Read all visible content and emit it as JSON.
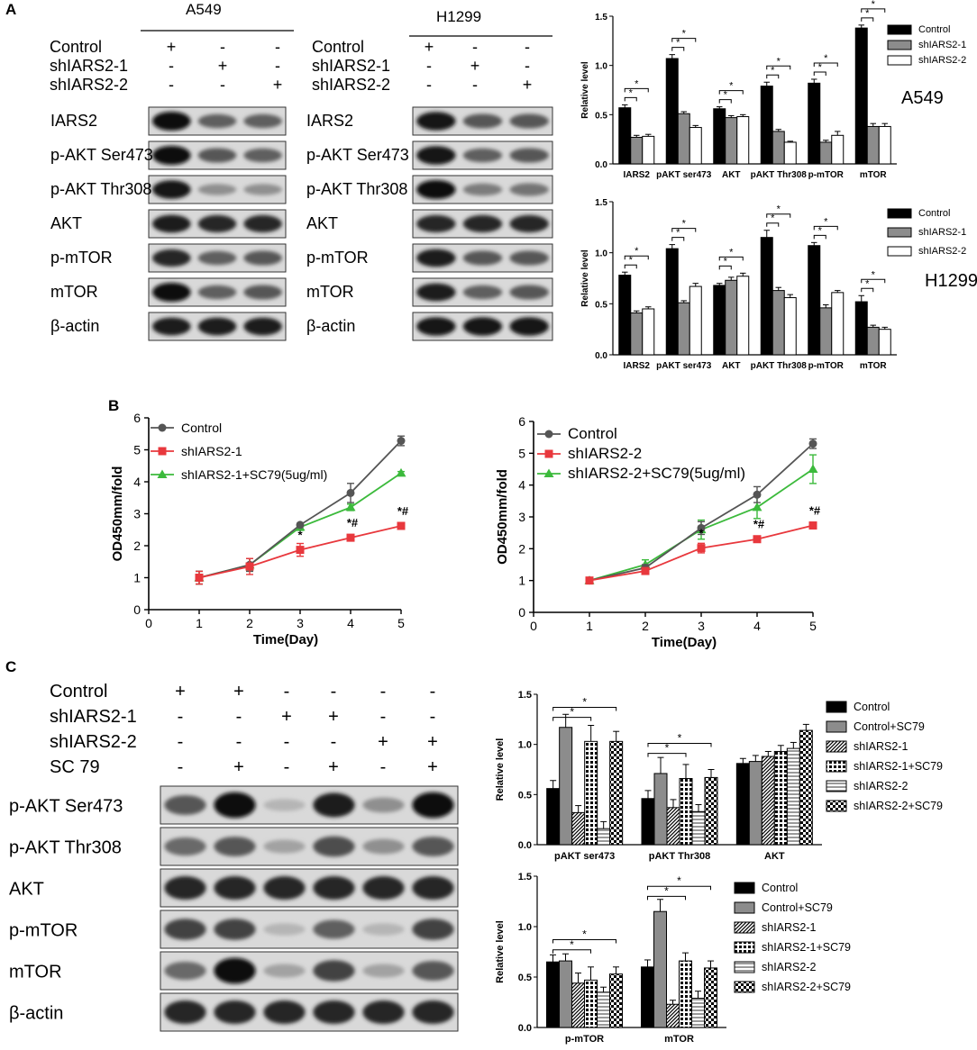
{
  "panels": {
    "A": "A",
    "B": "B",
    "C": "C"
  },
  "blotA549": {
    "cellline": "A549",
    "rowlabels": [
      "Control",
      "shIARS2-1",
      "shIARS2-2"
    ],
    "rows": [
      [
        "+",
        "-",
        "-"
      ],
      [
        "-",
        "+",
        "-"
      ],
      [
        "-",
        "-",
        "+"
      ]
    ],
    "bands": [
      "IARS2",
      "p-AKT Ser473",
      "p-AKT Thr308",
      "AKT",
      "p-mTOR",
      "mTOR",
      "β-actin"
    ]
  },
  "blotH1299": {
    "cellline": "H1299",
    "rowlabels": [
      "Control",
      "shIARS2-1",
      "shIARS2-2"
    ],
    "rows": [
      [
        "+",
        "-",
        "-"
      ],
      [
        "-",
        "+",
        "-"
      ],
      [
        "-",
        "-",
        "+"
      ]
    ],
    "bands": [
      "IARS2",
      "p-AKT Ser473",
      "p-AKT Thr308",
      "AKT",
      "p-mTOR",
      "mTOR",
      "β-actin"
    ]
  },
  "blotC": {
    "rowlabels": [
      "Control",
      "shIARS2-1",
      "shIARS2-2",
      "SC 79"
    ],
    "rows": [
      [
        "+",
        "+",
        "-",
        "-",
        "-",
        "-"
      ],
      [
        "-",
        "-",
        "+",
        "+",
        "-",
        "-"
      ],
      [
        "-",
        "-",
        "-",
        "-",
        "+",
        "+"
      ],
      [
        "-",
        "+",
        "-",
        "+",
        "-",
        "+"
      ]
    ],
    "bands": [
      "p-AKT Ser473",
      "p-AKT Thr308",
      "AKT",
      "p-mTOR",
      "mTOR",
      "β-actin"
    ]
  },
  "colors": {
    "black": "#000000",
    "grey": "#8c8c8c",
    "white": "#ffffff",
    "red": "#e8383d",
    "green": "#3cba3c",
    "darkgrey": "#555555"
  },
  "chart_data": [
    {
      "id": "a549",
      "type": "bar",
      "sidelabel": "A549",
      "ylabel": "Relative level",
      "ylim": [
        0,
        1.5
      ],
      "yticks": [
        "0.0",
        "0.5",
        "1.0",
        "1.5"
      ],
      "categories": [
        "IARS2",
        "pAKT ser473",
        "AKT",
        "pAKT Thr308",
        "p-mTOR",
        "mTOR"
      ],
      "series": [
        {
          "name": "Control",
          "values": [
            0.57,
            1.07,
            0.56,
            0.79,
            0.82,
            1.38
          ],
          "err": [
            0.03,
            0.04,
            0.02,
            0.04,
            0.04,
            0.03
          ]
        },
        {
          "name": "shIARS2-1",
          "values": [
            0.27,
            0.51,
            0.47,
            0.33,
            0.22,
            0.38
          ],
          "err": [
            0.02,
            0.02,
            0.02,
            0.02,
            0.02,
            0.03
          ]
        },
        {
          "name": "shIARS2-2",
          "values": [
            0.28,
            0.37,
            0.48,
            0.22,
            0.29,
            0.38
          ],
          "err": [
            0.02,
            0.02,
            0.02,
            0.01,
            0.04,
            0.03
          ]
        }
      ],
      "significance": "*"
    },
    {
      "id": "h1299",
      "type": "bar",
      "sidelabel": "H1299",
      "ylabel": "Relative level",
      "ylim": [
        0,
        1.5
      ],
      "yticks": [
        "0.0",
        "0.5",
        "1.0",
        "1.5"
      ],
      "categories": [
        "IARS2",
        "pAKT ser473",
        "AKT",
        "pAKT Thr308",
        "p-mTOR",
        "mTOR"
      ],
      "series": [
        {
          "name": "Control",
          "values": [
            0.78,
            1.04,
            0.68,
            1.15,
            1.07,
            0.52
          ],
          "err": [
            0.03,
            0.04,
            0.02,
            0.07,
            0.03,
            0.06
          ]
        },
        {
          "name": "shIARS2-1",
          "values": [
            0.41,
            0.51,
            0.73,
            0.63,
            0.46,
            0.27
          ],
          "err": [
            0.02,
            0.02,
            0.03,
            0.03,
            0.03,
            0.02
          ]
        },
        {
          "name": "shIARS2-2",
          "values": [
            0.45,
            0.67,
            0.77,
            0.56,
            0.61,
            0.25
          ],
          "err": [
            0.02,
            0.03,
            0.03,
            0.03,
            0.02,
            0.02
          ]
        }
      ],
      "significance": "*"
    },
    {
      "id": "B1",
      "type": "line",
      "xlabel": "Time(Day)",
      "ylabel": "OD450mm/fold",
      "xlim": [
        0,
        5
      ],
      "ylim": [
        0,
        6
      ],
      "xticks": [
        "0",
        "1",
        "2",
        "3",
        "4",
        "5"
      ],
      "yticks": [
        "0",
        "1",
        "2",
        "3",
        "4",
        "5",
        "6"
      ],
      "x": [
        1,
        2,
        3,
        4,
        5
      ],
      "series": [
        {
          "name": "Control",
          "values": [
            1.0,
            1.4,
            2.65,
            3.65,
            5.28
          ],
          "err": [
            0.2,
            0.2,
            0.05,
            0.3,
            0.15
          ]
        },
        {
          "name": "shIARS2-1",
          "values": [
            1.0,
            1.35,
            1.87,
            2.25,
            2.62
          ],
          "err": [
            0.2,
            0.25,
            0.2,
            0.1,
            0.1
          ]
        },
        {
          "name": "shIARS2-1+SC79(5ug/ml)",
          "values": [
            1.0,
            1.4,
            2.58,
            3.2,
            4.27
          ],
          "err": [
            0.2,
            0.2,
            0.1,
            0.1,
            0.05
          ]
        }
      ],
      "annotations": [
        {
          "x": 3,
          "text": "*"
        },
        {
          "x": 4,
          "text": "*#"
        },
        {
          "x": 5,
          "text": "*#"
        }
      ]
    },
    {
      "id": "B2",
      "type": "line",
      "xlabel": "Time(Day)",
      "ylabel": "OD450mm/fold",
      "xlim": [
        0,
        5
      ],
      "ylim": [
        0,
        6
      ],
      "xticks": [
        "0",
        "1",
        "2",
        "3",
        "4",
        "5"
      ],
      "yticks": [
        "0",
        "1",
        "2",
        "3",
        "4",
        "5",
        "6"
      ],
      "x": [
        1,
        2,
        3,
        4,
        5
      ],
      "series": [
        {
          "name": "Control",
          "values": [
            1.0,
            1.4,
            2.65,
            3.7,
            5.3
          ],
          "err": [
            0.05,
            0.1,
            0.2,
            0.25,
            0.15
          ]
        },
        {
          "name": "shIARS2-2",
          "values": [
            1.0,
            1.3,
            2.02,
            2.3,
            2.73
          ],
          "err": [
            0.05,
            0.05,
            0.15,
            0.08,
            0.08
          ]
        },
        {
          "name": "shIARS2-2+SC79(5ug/ml)",
          "values": [
            1.0,
            1.5,
            2.6,
            3.3,
            4.5
          ],
          "err": [
            0.05,
            0.15,
            0.3,
            0.35,
            0.45
          ]
        }
      ],
      "annotations": [
        {
          "x": 3,
          "text": "*"
        },
        {
          "x": 4,
          "text": "*#"
        },
        {
          "x": 5,
          "text": "*#"
        }
      ]
    },
    {
      "id": "C1",
      "type": "bar",
      "ylabel": "Relative level",
      "ylim": [
        0,
        1.5
      ],
      "yticks": [
        "0.0",
        "0.5",
        "1.0",
        "1.5"
      ],
      "categories": [
        "pAKT ser473",
        "pAKT Thr308",
        "AKT"
      ],
      "series": [
        {
          "name": "Control",
          "values": [
            0.56,
            0.46,
            0.81
          ],
          "err": [
            0.08,
            0.08,
            0.05
          ]
        },
        {
          "name": "Control+SC79",
          "values": [
            1.17,
            0.71,
            0.83
          ],
          "err": [
            0.13,
            0.16,
            0.06
          ]
        },
        {
          "name": "shIARS2-1",
          "values": [
            0.32,
            0.37,
            0.88
          ],
          "err": [
            0.07,
            0.08,
            0.05
          ]
        },
        {
          "name": "shIARS2-1+SC79",
          "values": [
            1.03,
            0.66,
            0.93
          ],
          "err": [
            0.16,
            0.14,
            0.06
          ]
        },
        {
          "name": "shIARS2-2",
          "values": [
            0.16,
            0.33,
            0.96
          ],
          "err": [
            0.07,
            0.07,
            0.06
          ]
        },
        {
          "name": "shIARS2-2+SC79",
          "values": [
            1.03,
            0.67,
            1.14
          ],
          "err": [
            0.1,
            0.08,
            0.06
          ]
        }
      ],
      "significance": "*"
    },
    {
      "id": "C2",
      "type": "bar",
      "ylabel": "Relative level",
      "ylim": [
        0,
        1.5
      ],
      "yticks": [
        "0.0",
        "0.5",
        "1.0",
        "1.5"
      ],
      "categories": [
        "p-mTOR",
        "mTOR"
      ],
      "series": [
        {
          "name": "Control",
          "values": [
            0.65,
            0.6
          ],
          "err": [
            0.07,
            0.07
          ]
        },
        {
          "name": "Control+SC79",
          "values": [
            0.66,
            1.15
          ],
          "err": [
            0.07,
            0.12
          ]
        },
        {
          "name": "shIARS2-1",
          "values": [
            0.44,
            0.23
          ],
          "err": [
            0.1,
            0.04
          ]
        },
        {
          "name": "shIARS2-1+SC79",
          "values": [
            0.47,
            0.66
          ],
          "err": [
            0.13,
            0.08
          ]
        },
        {
          "name": "shIARS2-2",
          "values": [
            0.35,
            0.29
          ],
          "err": [
            0.05,
            0.07
          ]
        },
        {
          "name": "shIARS2-2+SC79",
          "values": [
            0.53,
            0.59
          ],
          "err": [
            0.07,
            0.07
          ]
        }
      ],
      "significance": "*"
    }
  ]
}
